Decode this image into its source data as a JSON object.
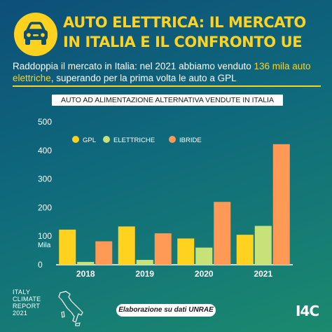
{
  "header": {
    "title_line1": "AUTO ELETTRICA: IL MERCATO",
    "title_line2": "IN ITALIA E IL CONFRONTO UE",
    "icon": "car-icon"
  },
  "subtitle": {
    "part1": "Raddoppia il mercato in Italia: nel 2021 abbiamo venduto ",
    "highlight1": "136",
    "highlight2": "mila auto elettriche",
    "part2": ", superando per la prima volta le auto a GPL"
  },
  "colors": {
    "accent": "#ffd21f",
    "gpl": "#ffd21f",
    "elettriche": "#c8e27a",
    "ibride": "#ff9a56"
  },
  "chart_data": {
    "type": "bar",
    "title": "AUTO AD ALIMENTAZIONE ALTERNATIVA VENDUTE IN ITALIA",
    "unit_label": "Mila",
    "categories": [
      "2018",
      "2019",
      "2020",
      "2021"
    ],
    "series": [
      {
        "name": "GPL",
        "values": [
          123,
          134,
          92,
          105
        ]
      },
      {
        "name": "ELETTRICHE",
        "values": [
          10,
          17,
          60,
          136
        ]
      },
      {
        "name": "IBRIDE",
        "values": [
          82,
          110,
          220,
          422
        ]
      }
    ],
    "ylim": [
      0,
      500
    ],
    "yticks": [
      "0",
      "100",
      "200",
      "300",
      "400",
      "500"
    ],
    "grid": false,
    "legend": "top-left"
  },
  "footer": {
    "report_line1": "ITALY",
    "report_line2": "CLIMATE",
    "report_line3": "REPORT",
    "report_line4": "2021",
    "source": "Elaborazione su dati UNRAE",
    "brand": "I4C"
  }
}
